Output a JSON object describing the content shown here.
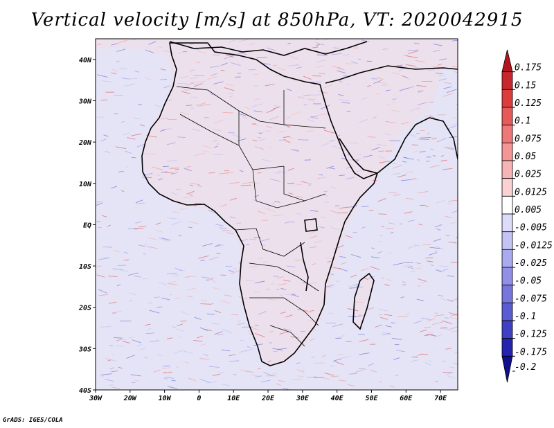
{
  "title": "Vertical velocity [m/s] at 850hPa, VT: 2020042915",
  "credit": "GrADS: IGES/COLA",
  "map": {
    "lon_range": [
      -30,
      75
    ],
    "lat_range": [
      -40,
      45
    ],
    "lon_ticks": [
      {
        "value": -30,
        "label": "30W"
      },
      {
        "value": -20,
        "label": "20W"
      },
      {
        "value": -10,
        "label": "10W"
      },
      {
        "value": 0,
        "label": "0"
      },
      {
        "value": 10,
        "label": "10E"
      },
      {
        "value": 20,
        "label": "20E"
      },
      {
        "value": 30,
        "label": "30E"
      },
      {
        "value": 40,
        "label": "40E"
      },
      {
        "value": 50,
        "label": "50E"
      },
      {
        "value": 60,
        "label": "60E"
      },
      {
        "value": 70,
        "label": "70E"
      }
    ],
    "lat_ticks": [
      {
        "value": 40,
        "label": "40N"
      },
      {
        "value": 30,
        "label": "30N"
      },
      {
        "value": 20,
        "label": "20N"
      },
      {
        "value": 10,
        "label": "10N"
      },
      {
        "value": 0,
        "label": "EQ"
      },
      {
        "value": -10,
        "label": "10S"
      },
      {
        "value": -20,
        "label": "20S"
      },
      {
        "value": -30,
        "label": "30S"
      },
      {
        "value": -40,
        "label": "40S"
      }
    ]
  },
  "colorbar": {
    "levels": [
      "0.175",
      "0.15",
      "0.125",
      "0.1",
      "0.075",
      "0.05",
      "0.025",
      "0.0125",
      "0.005",
      "-0.005",
      "-0.0125",
      "-0.025",
      "-0.05",
      "-0.075",
      "-0.1",
      "-0.125",
      "-0.175",
      "-0.2"
    ],
    "colors": [
      "#b4141e",
      "#c8282d",
      "#dc3c3c",
      "#e65a5a",
      "#ee7878",
      "#f29696",
      "#f6b4b4",
      "#fad2d2",
      "#ffffff",
      "#dcdcfa",
      "#c4c4f4",
      "#aaaaee",
      "#9090e6",
      "#7676dc",
      "#5c5cd2",
      "#4040c4",
      "#2424b0",
      "#10108c"
    ]
  }
}
